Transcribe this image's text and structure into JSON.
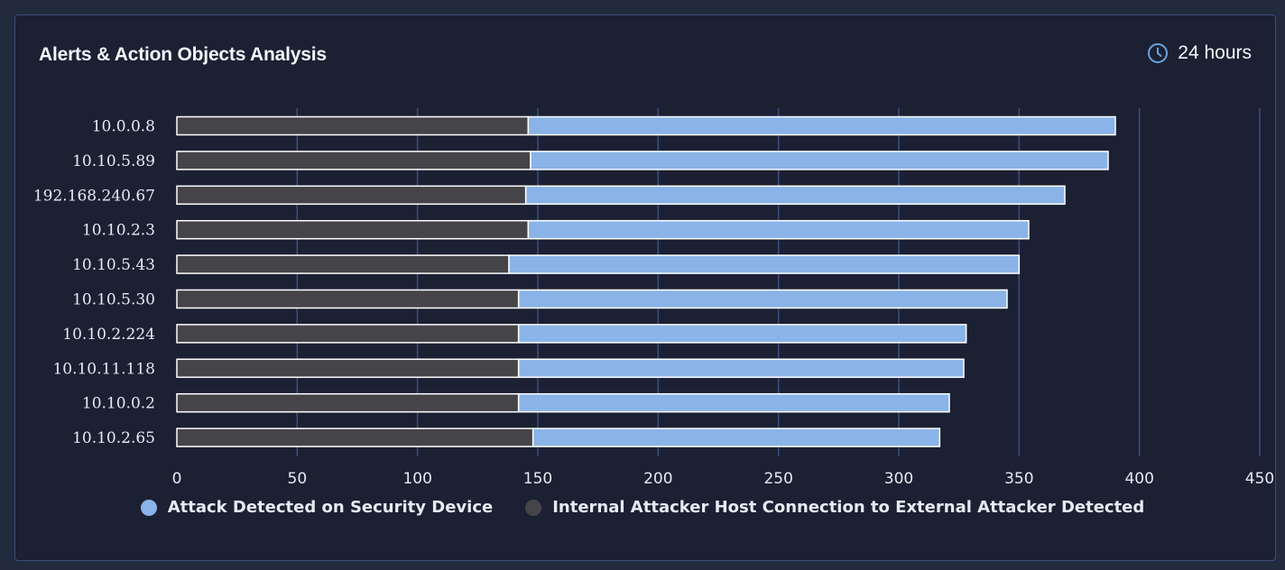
{
  "header": {
    "title": "Alerts & Action Objects Analysis",
    "timeframe": "24 hours"
  },
  "icons": {
    "timeframe": "clock-icon"
  },
  "colors": {
    "background": "#1b2033",
    "grid": "#3b5080",
    "series_attack": "#8ab4e8",
    "series_internal": "#454549",
    "bar_border": "#ffffff"
  },
  "chart_data": {
    "type": "bar",
    "orientation": "horizontal",
    "stacked": true,
    "title": "Alerts & Action Objects Analysis",
    "categories": [
      "10.0.0.8",
      "10.10.5.89",
      "192.168.240.67",
      "10.10.2.3",
      "10.10.5.43",
      "10.10.5.30",
      "10.10.2.224",
      "10.10.11.118",
      "10.10.0.2",
      "10.10.2.65"
    ],
    "series": [
      {
        "name": "Internal Attacker Host Connection to External Attacker Detected",
        "color": "#454549",
        "values": [
          146,
          147,
          145,
          146,
          138,
          142,
          142,
          142,
          142,
          148
        ]
      },
      {
        "name": "Attack Detected on Security Device",
        "color": "#8ab4e8",
        "values": [
          244,
          240,
          224,
          208,
          212,
          203,
          186,
          185,
          179,
          169
        ]
      }
    ],
    "xlim": [
      0,
      450
    ],
    "xticks": [
      0,
      50,
      100,
      150,
      200,
      250,
      300,
      350,
      400,
      450
    ],
    "grid": "vertical",
    "legend_position": "bottom",
    "legend": [
      {
        "label": "Attack Detected on Security Device",
        "color": "#8ab4e8"
      },
      {
        "label": "Internal Attacker Host Connection to External Attacker Detected",
        "color": "#454549"
      }
    ]
  }
}
